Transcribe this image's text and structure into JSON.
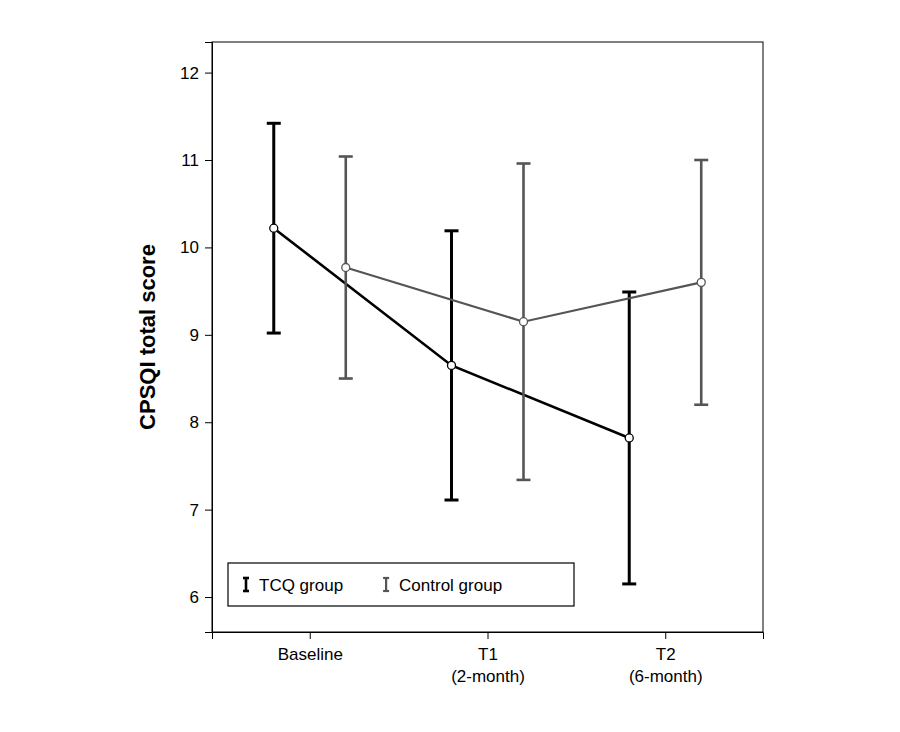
{
  "chart_data": {
    "type": "line",
    "categories": [
      "Baseline",
      "T1\n(2-month)",
      "T2\n(6-month)"
    ],
    "y_label": "CPSQI total score",
    "ylim": [
      5.6,
      12.35
    ],
    "yticks": [
      6,
      7,
      8,
      9,
      10,
      11,
      12
    ],
    "legend": "lower left",
    "marker": "circle",
    "series": [
      {
        "name": "TCQ group",
        "color": "#000000",
        "values": [
          10.22,
          8.65,
          7.82
        ],
        "errors": [
          1.2,
          1.54,
          1.67
        ]
      },
      {
        "name": "Control group",
        "color": "#555555",
        "values": [
          9.77,
          9.15,
          9.6
        ],
        "errors": [
          1.27,
          1.81,
          1.4
        ]
      }
    ]
  }
}
